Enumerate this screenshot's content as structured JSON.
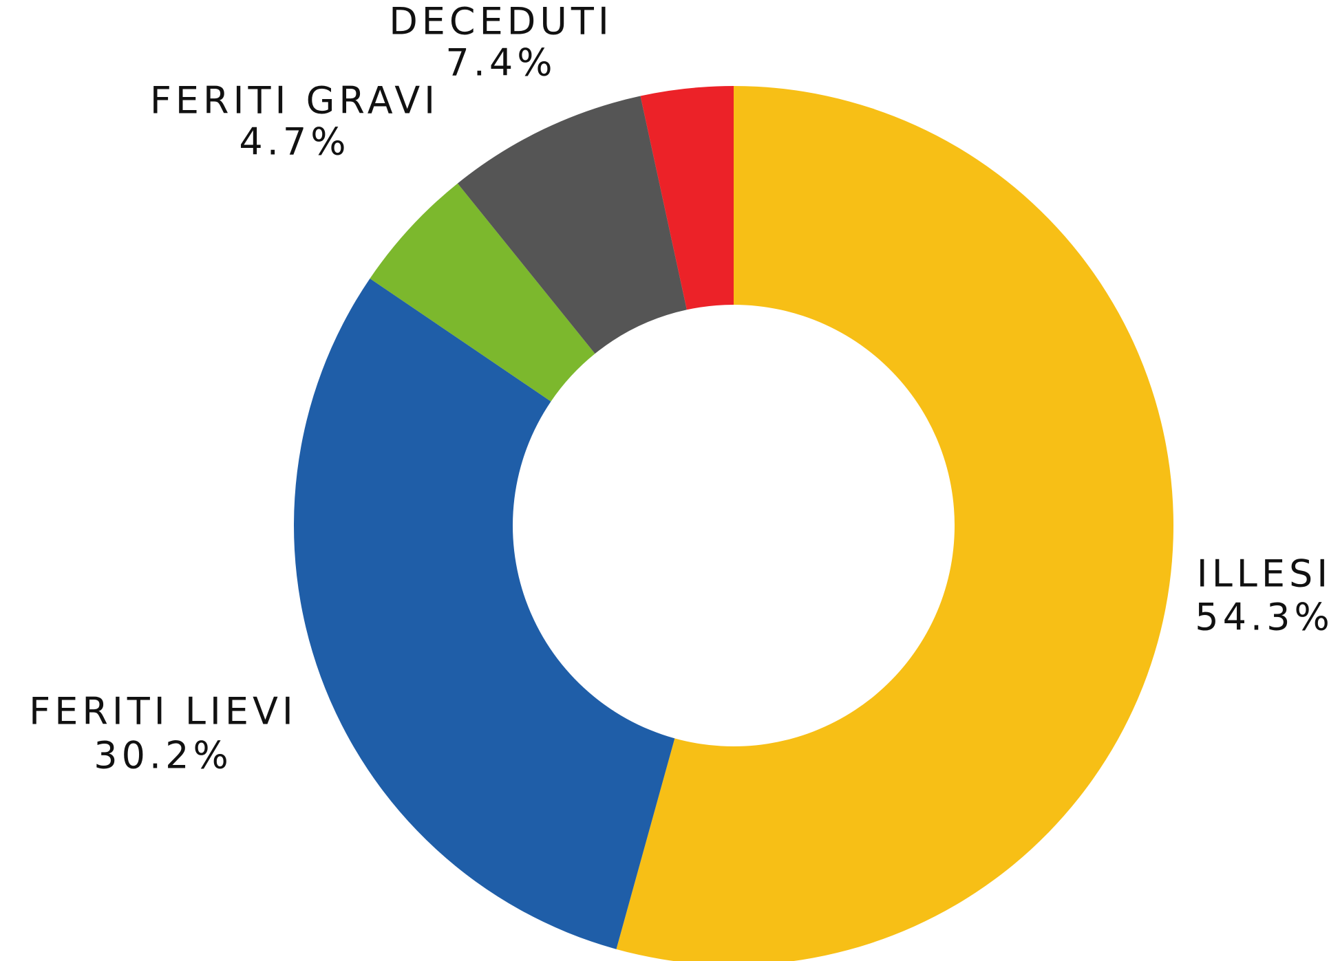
{
  "chart_data": {
    "type": "donut",
    "categories": [
      "ILLESI",
      "FERITI LIEVI",
      "FERITI GRAVI",
      "DECEDUTI",
      null
    ],
    "values": [
      54.3,
      30.2,
      4.7,
      7.4,
      3.4
    ],
    "value_labels": [
      "54.3%",
      "30.2%",
      "4.7%",
      "7.4%",
      null
    ],
    "colors": [
      "#f7bf16",
      "#1f5ea8",
      "#7cb82d",
      "#555555",
      "#ec2228"
    ]
  }
}
